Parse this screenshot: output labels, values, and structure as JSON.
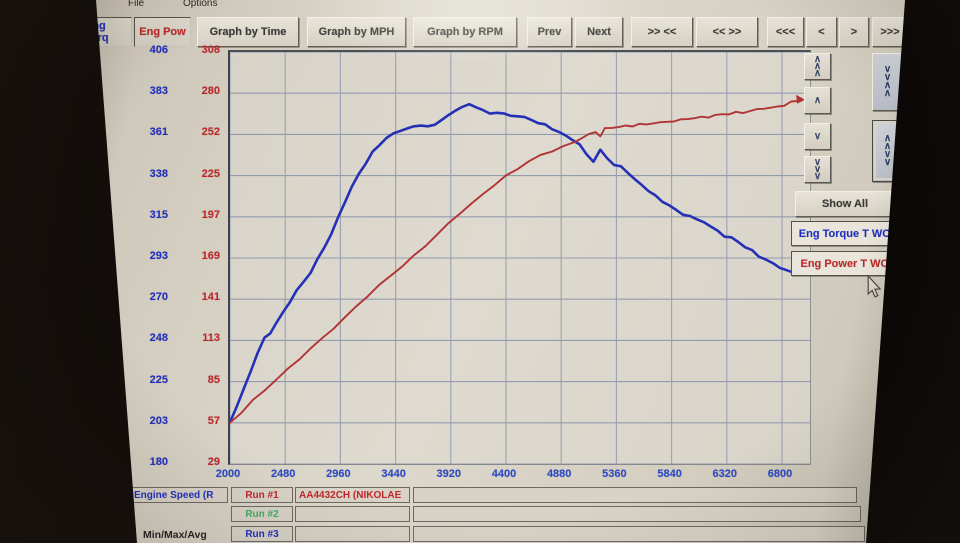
{
  "menu": {
    "items": [
      "File",
      "Options"
    ]
  },
  "tabs": [
    {
      "label": "Eng Torq",
      "color": "#1f2ec2"
    },
    {
      "label": "Eng Pow",
      "color": "#c0272b"
    }
  ],
  "toolbar": {
    "buttons": [
      "Graph by Time",
      "Graph by MPH",
      "Graph by RPM",
      "Prev",
      "Next",
      ">> <<",
      "<< >>",
      "<<<",
      "<",
      ">",
      ">>>"
    ]
  },
  "right_panel": {
    "show_all_label": "Show All",
    "scroll_buttons": [
      {
        "name": "scroll-up-fast",
        "glyphs": "∧\n∧\n∧"
      },
      {
        "name": "scroll-up",
        "glyphs": "∧"
      },
      {
        "name": "scroll-down",
        "glyphs": "∨"
      },
      {
        "name": "scroll-down-fast",
        "glyphs": "∨\n∨\n∨"
      },
      {
        "name": "zoom-collapse",
        "glyphs": "∨\n∨\n∧\n∧"
      },
      {
        "name": "zoom-expand",
        "glyphs": "∧\n∧\n∨\n∨"
      }
    ],
    "legend": [
      {
        "label": "Eng Torque T WC",
        "color": "#1f2ec2"
      },
      {
        "label": "Eng Power T WC",
        "color": "#c0272b"
      }
    ]
  },
  "bottom_panel": {
    "rows": [
      {
        "label": "Engine Speed (R",
        "label_color": "#1f2ec2",
        "run_label": "Run #1",
        "run_color": "#c0272b",
        "value": "AA4432CH (NIKOLAE"
      },
      {
        "label": "",
        "label_color": "#26241f",
        "run_label": "Run #2",
        "run_color": "#3fae66",
        "value": ""
      },
      {
        "label": "Min/Max/Avg",
        "label_color": "#26241f",
        "run_label": "Run #3",
        "run_color": "#1f2ec2",
        "value": ""
      }
    ]
  },
  "chart_data": {
    "type": "line",
    "grid": true,
    "x_ticks": [
      2000,
      2480,
      2960,
      3440,
      3920,
      4400,
      4880,
      5360,
      5840,
      6320,
      6800
    ],
    "x_range": [
      2000,
      6960
    ],
    "torque_axis": {
      "color": "#1f2ec2",
      "range": [
        180,
        406
      ],
      "ticks": [
        406,
        383,
        361,
        338,
        315,
        293,
        270,
        248,
        225,
        203,
        180
      ]
    },
    "power_axis": {
      "color": "#c0272b",
      "range": [
        29,
        308
      ],
      "ticks": [
        308,
        280,
        252,
        225,
        197,
        169,
        141,
        113,
        85,
        57,
        29
      ]
    },
    "series": [
      {
        "name": "Eng Torque T WC",
        "axis": "torque",
        "color": "#2431b5",
        "points": [
          [
            2000,
            203
          ],
          [
            2060,
            212
          ],
          [
            2120,
            221
          ],
          [
            2180,
            231
          ],
          [
            2240,
            241
          ],
          [
            2300,
            249
          ],
          [
            2350,
            252
          ],
          [
            2400,
            257
          ],
          [
            2460,
            263
          ],
          [
            2520,
            269
          ],
          [
            2580,
            275
          ],
          [
            2640,
            280
          ],
          [
            2700,
            285
          ],
          [
            2760,
            292
          ],
          [
            2820,
            299
          ],
          [
            2880,
            306
          ],
          [
            2940,
            315
          ],
          [
            3000,
            324
          ],
          [
            3060,
            332
          ],
          [
            3120,
            339
          ],
          [
            3180,
            345
          ],
          [
            3240,
            351
          ],
          [
            3300,
            355
          ],
          [
            3360,
            359
          ],
          [
            3420,
            361
          ],
          [
            3480,
            363
          ],
          [
            3540,
            364
          ],
          [
            3600,
            365
          ],
          [
            3660,
            366
          ],
          [
            3720,
            365
          ],
          [
            3780,
            366
          ],
          [
            3840,
            369
          ],
          [
            3900,
            371
          ],
          [
            3960,
            374
          ],
          [
            4020,
            376
          ],
          [
            4080,
            377
          ],
          [
            4140,
            376
          ],
          [
            4200,
            374
          ],
          [
            4260,
            372
          ],
          [
            4320,
            373
          ],
          [
            4380,
            372
          ],
          [
            4440,
            371
          ],
          [
            4500,
            371
          ],
          [
            4560,
            370
          ],
          [
            4620,
            369
          ],
          [
            4680,
            367
          ],
          [
            4740,
            366
          ],
          [
            4800,
            364
          ],
          [
            4860,
            362
          ],
          [
            4920,
            360
          ],
          [
            4980,
            358
          ],
          [
            5040,
            355
          ],
          [
            5100,
            350
          ],
          [
            5160,
            346
          ],
          [
            5220,
            352
          ],
          [
            5280,
            348
          ],
          [
            5340,
            344
          ],
          [
            5400,
            343
          ],
          [
            5460,
            340
          ],
          [
            5520,
            336
          ],
          [
            5580,
            333
          ],
          [
            5640,
            330
          ],
          [
            5700,
            327
          ],
          [
            5760,
            324
          ],
          [
            5820,
            322
          ],
          [
            5880,
            319
          ],
          [
            5940,
            317
          ],
          [
            6000,
            316
          ],
          [
            6060,
            314
          ],
          [
            6120,
            313
          ],
          [
            6180,
            310
          ],
          [
            6240,
            308
          ],
          [
            6300,
            305
          ],
          [
            6360,
            304
          ],
          [
            6420,
            302
          ],
          [
            6480,
            299
          ],
          [
            6540,
            297
          ],
          [
            6600,
            294
          ],
          [
            6660,
            292
          ],
          [
            6720,
            290
          ],
          [
            6780,
            288
          ],
          [
            6840,
            286
          ],
          [
            6900,
            285
          ]
        ]
      },
      {
        "name": "Eng Power T WC",
        "axis": "power",
        "color": "#b23437",
        "points": [
          [
            2000,
            57
          ],
          [
            2100,
            64
          ],
          [
            2200,
            72
          ],
          [
            2300,
            79
          ],
          [
            2400,
            86
          ],
          [
            2500,
            93
          ],
          [
            2600,
            100
          ],
          [
            2700,
            107
          ],
          [
            2800,
            114
          ],
          [
            2900,
            121
          ],
          [
            3000,
            128
          ],
          [
            3100,
            136
          ],
          [
            3200,
            143
          ],
          [
            3300,
            150
          ],
          [
            3400,
            157
          ],
          [
            3500,
            163
          ],
          [
            3600,
            170
          ],
          [
            3700,
            177
          ],
          [
            3800,
            184
          ],
          [
            3900,
            192
          ],
          [
            4000,
            199
          ],
          [
            4100,
            205
          ],
          [
            4200,
            212
          ],
          [
            4300,
            218
          ],
          [
            4400,
            224
          ],
          [
            4500,
            229
          ],
          [
            4600,
            234
          ],
          [
            4700,
            238
          ],
          [
            4800,
            241
          ],
          [
            4900,
            244
          ],
          [
            5000,
            247
          ],
          [
            5060,
            250
          ],
          [
            5120,
            252
          ],
          [
            5180,
            254
          ],
          [
            5220,
            251
          ],
          [
            5260,
            256
          ],
          [
            5320,
            257
          ],
          [
            5380,
            257
          ],
          [
            5440,
            258
          ],
          [
            5500,
            258
          ],
          [
            5560,
            259
          ],
          [
            5620,
            259
          ],
          [
            5680,
            260
          ],
          [
            5740,
            260
          ],
          [
            5800,
            261
          ],
          [
            5860,
            261
          ],
          [
            5920,
            262
          ],
          [
            5980,
            263
          ],
          [
            6040,
            263
          ],
          [
            6100,
            264
          ],
          [
            6160,
            264
          ],
          [
            6220,
            265
          ],
          [
            6280,
            266
          ],
          [
            6340,
            266
          ],
          [
            6400,
            267
          ],
          [
            6460,
            267
          ],
          [
            6520,
            268
          ],
          [
            6580,
            269
          ],
          [
            6640,
            270
          ],
          [
            6700,
            270
          ],
          [
            6760,
            271
          ],
          [
            6820,
            272
          ],
          [
            6880,
            274
          ],
          [
            6940,
            275
          ]
        ]
      }
    ]
  }
}
